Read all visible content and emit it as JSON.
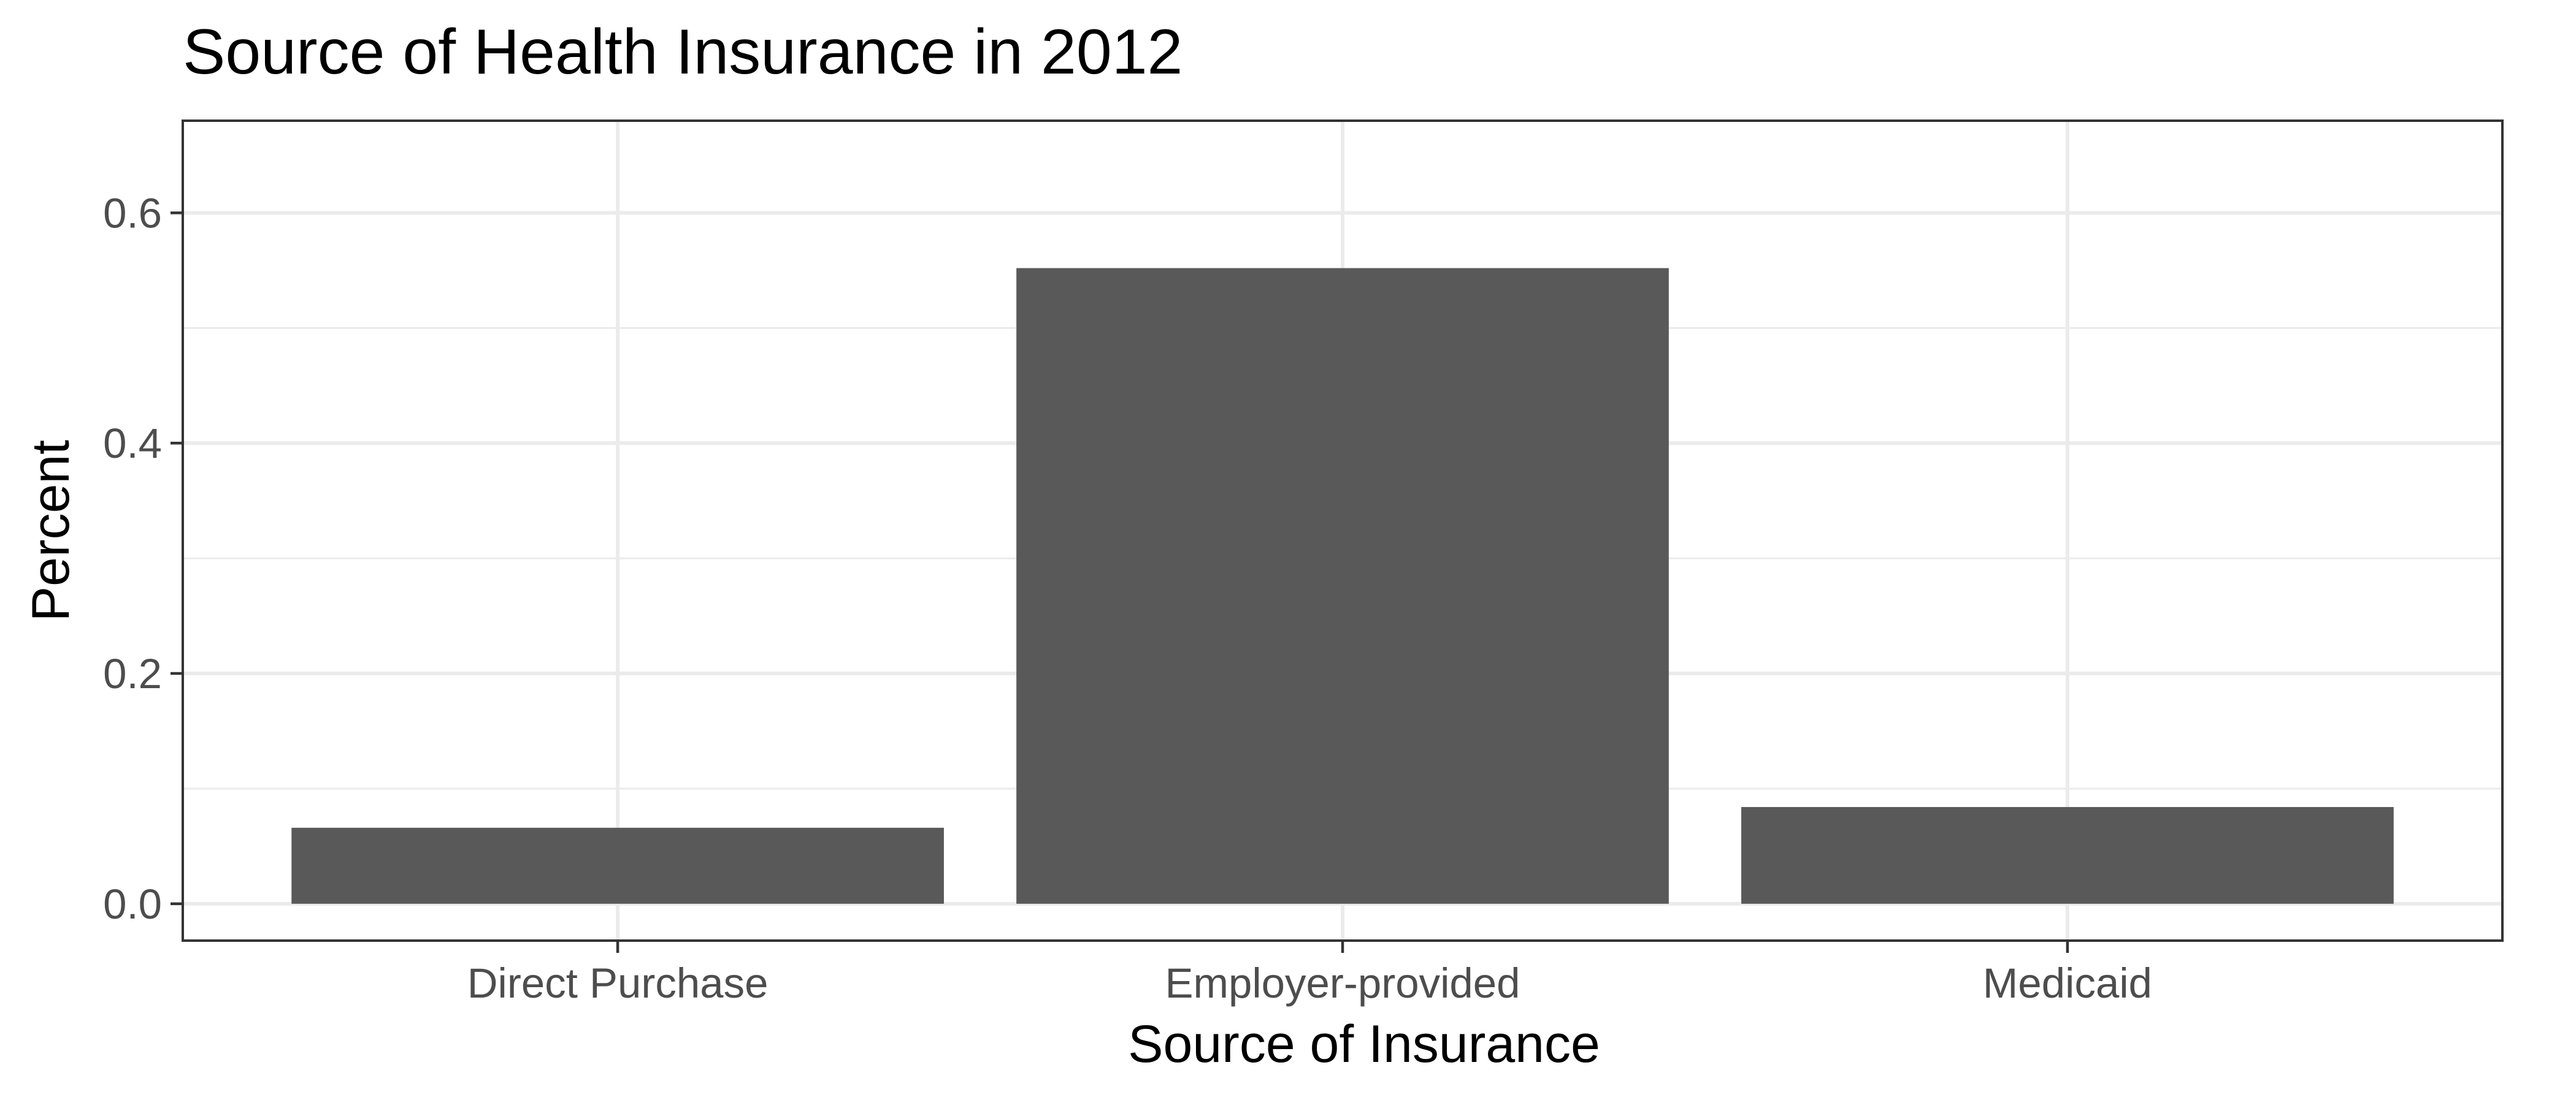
{
  "chart_data": {
    "type": "bar",
    "title": "Source of Health Insurance in 2012",
    "xlabel": "Source of Insurance",
    "ylabel": "Percent",
    "categories": [
      "Direct Purchase",
      "Employer-provided",
      "Medicaid"
    ],
    "values": [
      0.066,
      0.552,
      0.084
    ],
    "ylim": [
      -0.032,
      0.68
    ],
    "y_ticks": [
      0,
      0.2,
      0.4,
      0.6
    ],
    "y_tick_labels": [
      "0.0",
      "0.2",
      "0.4",
      "0.6"
    ],
    "grid": true,
    "legend": "none",
    "bar_color": "#595959",
    "grid_color": "#ebebeb",
    "border_color": "#333333"
  }
}
